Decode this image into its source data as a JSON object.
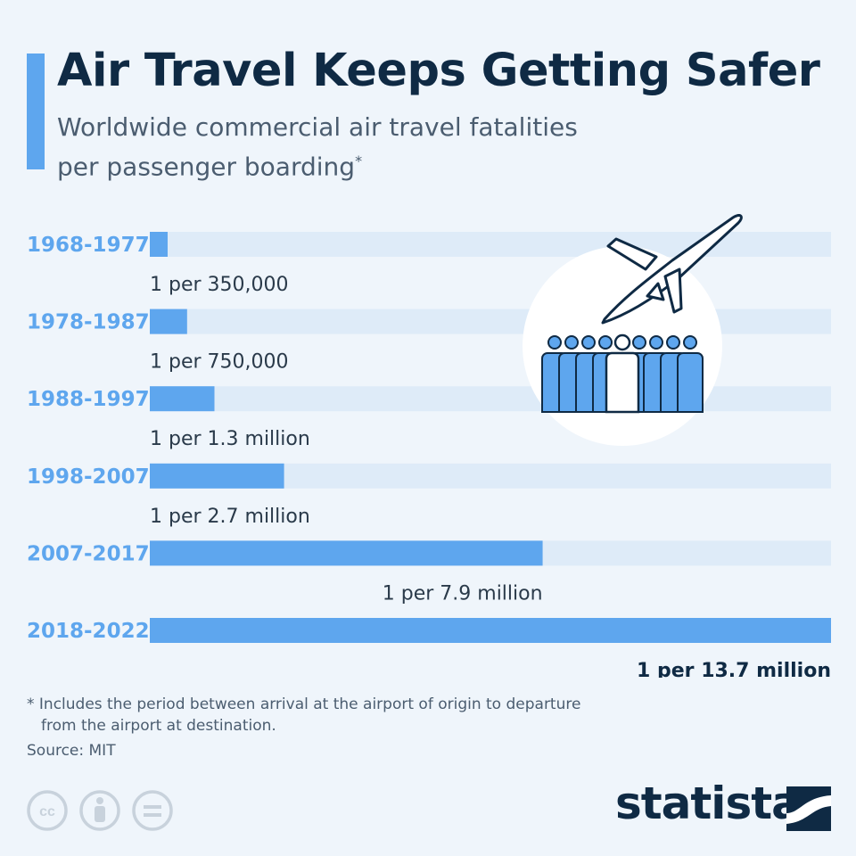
{
  "title": "Air Travel Keeps Getting Safer",
  "subtitle_line1": "Worldwide commercial air travel fatalities",
  "subtitle_line2": "per passenger boarding",
  "subtitle_mark": "*",
  "footnote_line1": "* Includes the period between arrival at the airport of origin to departure",
  "footnote_line2": "from the airport at destination.",
  "source": "Source: MIT",
  "brand": "statista",
  "icons": [
    "cc-icon",
    "person-icon",
    "equals-icon",
    "airplane-icon",
    "crowd-icon",
    "statista-logo-icon"
  ],
  "colors": {
    "accent": "#5ea6ee",
    "bar": "#5ea6ee",
    "track": "#deebf8",
    "category_label": "#5ea6ee",
    "title": "#0f2a44",
    "background": "#eff5fb"
  },
  "chart_data": {
    "type": "bar",
    "orientation": "horizontal",
    "categories": [
      "1968-1977",
      "1978-1987",
      "1988-1997",
      "1998-2007",
      "2007-2017",
      "2018-2022"
    ],
    "values": [
      350000,
      750000,
      1300000,
      2700000,
      7900000,
      13700000
    ],
    "value_labels": [
      "1 per 350,000",
      "1 per 750,000",
      "1 per 1.3 million",
      "1 per 2.7 million",
      "1 per 7.9 million",
      "1 per 13.7 million"
    ],
    "xlim": [
      0,
      13700000
    ],
    "grid": false,
    "legend": "none"
  }
}
